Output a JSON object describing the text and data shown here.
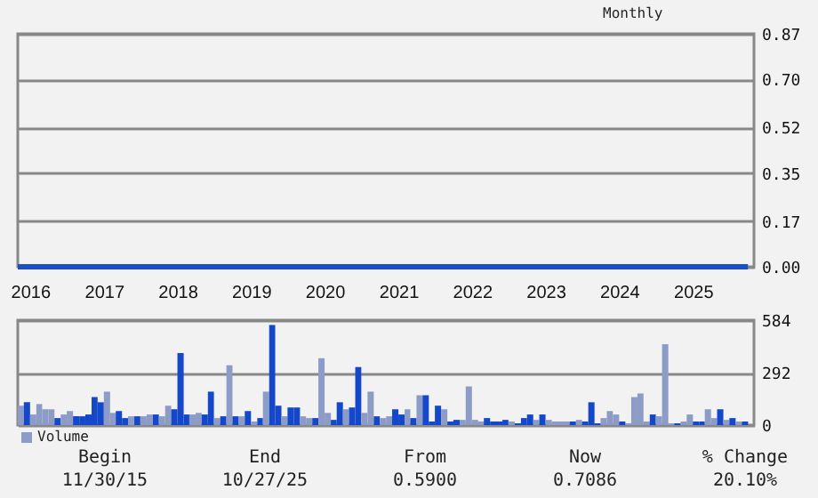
{
  "chart_data": [
    {
      "type": "line",
      "annotations": [
        "Monthly"
      ],
      "x": [
        "2015-11",
        "2025-10"
      ],
      "series": [
        {
          "color": "#1a4fc8",
          "values": [
            0,
            0
          ]
        }
      ],
      "xlim": [
        "2015-11-01",
        "2025-10-31"
      ],
      "xticks": [
        {
          "value": "2016-01",
          "label": "2016"
        },
        {
          "value": "2017-01",
          "label": "2017"
        },
        {
          "value": "2018-01",
          "label": "2018"
        },
        {
          "value": "2019-01",
          "label": "2019"
        },
        {
          "value": "2020-01",
          "label": "2020"
        },
        {
          "value": "2021-01",
          "label": "2021"
        },
        {
          "value": "2022-01",
          "label": "2022"
        },
        {
          "value": "2023-01",
          "label": "2023"
        },
        {
          "value": "2024-01",
          "label": "2024"
        },
        {
          "value": "2025-01",
          "label": "2025"
        }
      ],
      "ylim": [
        0,
        0.87
      ],
      "yticks": [
        {
          "value": 0,
          "label": "0.00"
        },
        0.17,
        0.35,
        0.52,
        {
          "value": 0.7,
          "label": "0.70"
        },
        0.87
      ],
      "grid": "y"
    },
    {
      "type": "bar",
      "x": [
        "2015-11",
        "2015-12",
        "2016-01",
        "2016-02",
        "2016-03",
        "2016-04",
        "2016-05",
        "2016-06",
        "2016-07",
        "2016-08",
        "2016-09",
        "2016-10",
        "2016-11",
        "2016-12",
        "2017-01",
        "2017-02",
        "2017-03",
        "2017-04",
        "2017-05",
        "2017-06",
        "2017-07",
        "2017-08",
        "2017-09",
        "2017-10",
        "2017-11",
        "2017-12",
        "2018-01",
        "2018-02",
        "2018-03",
        "2018-04",
        "2018-05",
        "2018-06",
        "2018-07",
        "2018-08",
        "2018-09",
        "2018-10",
        "2018-11",
        "2018-12",
        "2019-01",
        "2019-02",
        "2019-03",
        "2019-04",
        "2019-05",
        "2019-06",
        "2019-07",
        "2019-08",
        "2019-09",
        "2019-10",
        "2019-11",
        "2019-12",
        "2020-01",
        "2020-02",
        "2020-03",
        "2020-04",
        "2020-05",
        "2020-06",
        "2020-07",
        "2020-08",
        "2020-09",
        "2020-10",
        "2020-11",
        "2020-12",
        "2021-01",
        "2021-02",
        "2021-03",
        "2021-04",
        "2021-05",
        "2021-06",
        "2021-07",
        "2021-08",
        "2021-09",
        "2021-10",
        "2021-11",
        "2021-12",
        "2022-01",
        "2022-02",
        "2022-03",
        "2022-04",
        "2022-05",
        "2022-06",
        "2022-07",
        "2022-08",
        "2022-09",
        "2022-10",
        "2022-11",
        "2022-12",
        "2023-01",
        "2023-02",
        "2023-03",
        "2023-04",
        "2023-05",
        "2023-06",
        "2023-07",
        "2023-08",
        "2023-09",
        "2023-10",
        "2023-11",
        "2023-12",
        "2024-01",
        "2024-02",
        "2024-03",
        "2024-04",
        "2024-05",
        "2024-06",
        "2024-07",
        "2024-08",
        "2024-09",
        "2024-10",
        "2024-11",
        "2024-12",
        "2025-01",
        "2025-02",
        "2025-03",
        "2025-04",
        "2025-05",
        "2025-06",
        "2025-07",
        "2025-08",
        "2025-09"
      ],
      "series": [
        {
          "name": "Volume",
          "color": "#8c9cc6",
          "values": [
            108,
            127,
            59,
            117,
            88,
            88,
            39,
            59,
            78,
            49,
            49,
            59,
            156,
            127,
            186,
            68,
            78,
            39,
            49,
            49,
            49,
            59,
            59,
            49,
            108,
            88,
            401,
            59,
            59,
            68,
            59,
            186,
            39,
            49,
            333,
            49,
            49,
            78,
            20,
            39,
            186,
            557,
            108,
            49,
            98,
            98,
            49,
            39,
            39,
            372,
            68,
            29,
            127,
            88,
            98,
            323,
            68,
            186,
            49,
            39,
            49,
            88,
            59,
            88,
            39,
            166,
            166,
            20,
            108,
            88,
            20,
            29,
            29,
            215,
            29,
            20,
            39,
            20,
            20,
            29,
            20,
            10,
            39,
            59,
            29,
            59,
            29,
            20,
            20,
            20,
            20,
            29,
            20,
            127,
            10,
            39,
            78,
            59,
            20,
            10,
            156,
            176,
            20,
            59,
            49,
            450,
            10,
            10,
            20,
            59,
            20,
            20,
            88,
            39,
            88,
            29,
            39,
            20,
            20
          ],
          "colors": [
            "#8c9cc6",
            "#1448c8",
            "#8c9cc6",
            "#8c9cc6",
            "#8c9cc6",
            "#8c9cc6",
            "#1448c8",
            "#8c9cc6",
            "#8c9cc6",
            "#1448c8",
            "#1448c8",
            "#1448c8",
            "#1448c8",
            "#1448c8",
            "#8c9cc6",
            "#8c9cc6",
            "#1448c8",
            "#1448c8",
            "#8c9cc6",
            "#1448c8",
            "#8c9cc6",
            "#8c9cc6",
            "#1448c8",
            "#8c9cc6",
            "#8c9cc6",
            "#1448c8",
            "#1448c8",
            "#1448c8",
            "#8c9cc6",
            "#8c9cc6",
            "#1448c8",
            "#1448c8",
            "#8c9cc6",
            "#1448c8",
            "#8c9cc6",
            "#1448c8",
            "#8c9cc6",
            "#1448c8",
            "#8c9cc6",
            "#1448c8",
            "#8c9cc6",
            "#1448c8",
            "#1448c8",
            "#8c9cc6",
            "#1448c8",
            "#1448c8",
            "#8c9cc6",
            "#8c9cc6",
            "#1448c8",
            "#8c9cc6",
            "#8c9cc6",
            "#1448c8",
            "#1448c8",
            "#8c9cc6",
            "#1448c8",
            "#1448c8",
            "#8c9cc6",
            "#8c9cc6",
            "#1448c8",
            "#8c9cc6",
            "#8c9cc6",
            "#1448c8",
            "#1448c8",
            "#8c9cc6",
            "#1448c8",
            "#8c9cc6",
            "#1448c8",
            "#1448c8",
            "#1448c8",
            "#8c9cc6",
            "#1448c8",
            "#1448c8",
            "#8c9cc6",
            "#8c9cc6",
            "#8c9cc6",
            "#8c9cc6",
            "#1448c8",
            "#1448c8",
            "#1448c8",
            "#1448c8",
            "#8c9cc6",
            "#1448c8",
            "#1448c8",
            "#1448c8",
            "#8c9cc6",
            "#1448c8",
            "#8c9cc6",
            "#8c9cc6",
            "#8c9cc6",
            "#8c9cc6",
            "#1448c8",
            "#8c9cc6",
            "#1448c8",
            "#1448c8",
            "#1448c8",
            "#8c9cc6",
            "#8c9cc6",
            "#8c9cc6",
            "#1448c8",
            "#8c9cc6",
            "#8c9cc6",
            "#8c9cc6",
            "#8c9cc6",
            "#1448c8",
            "#8c9cc6",
            "#8c9cc6",
            "#8c9cc6",
            "#1448c8",
            "#8c9cc6",
            "#8c9cc6",
            "#1448c8",
            "#1448c8",
            "#8c9cc6",
            "#8c9cc6",
            "#1448c8",
            "#8c9cc6",
            "#1448c8",
            "#8c9cc6",
            "#1448c8"
          ]
        }
      ],
      "xlim": [
        "2015-11-01",
        "2025-10-31"
      ],
      "ylim": [
        0,
        584
      ],
      "yticks": [
        0,
        292,
        584
      ],
      "grid": "y",
      "legend": "bottom left",
      "tick_labels": "y"
    },
    {
      "type": "other",
      "annotations": [
        "Begin",
        "End",
        "From",
        "Now",
        "% Change",
        "11/30/15",
        "10/27/25",
        "0.5900",
        "0.7086",
        "20.10%"
      ]
    }
  ]
}
